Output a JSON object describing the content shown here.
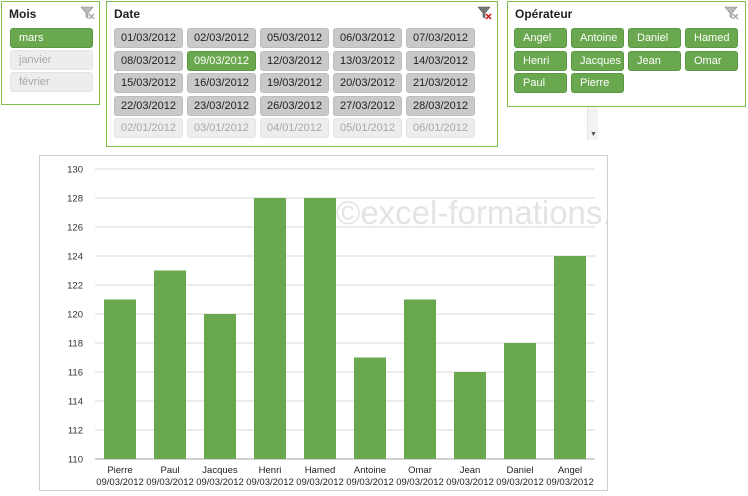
{
  "slicers": {
    "mois": {
      "title": "Mois",
      "items": [
        {
          "label": "mars",
          "state": "selected"
        },
        {
          "label": "janvier",
          "state": "nodata"
        },
        {
          "label": "février",
          "state": "nodata"
        }
      ]
    },
    "date": {
      "title": "Date",
      "items": [
        {
          "label": "01/03/2012",
          "state": "available"
        },
        {
          "label": "02/03/2012",
          "state": "available"
        },
        {
          "label": "05/03/2012",
          "state": "available"
        },
        {
          "label": "06/03/2012",
          "state": "available"
        },
        {
          "label": "07/03/2012",
          "state": "available"
        },
        {
          "label": "08/03/2012",
          "state": "available"
        },
        {
          "label": "09/03/2012",
          "state": "selected"
        },
        {
          "label": "12/03/2012",
          "state": "available"
        },
        {
          "label": "13/03/2012",
          "state": "available"
        },
        {
          "label": "14/03/2012",
          "state": "available"
        },
        {
          "label": "15/03/2012",
          "state": "available"
        },
        {
          "label": "16/03/2012",
          "state": "available"
        },
        {
          "label": "19/03/2012",
          "state": "available"
        },
        {
          "label": "20/03/2012",
          "state": "available"
        },
        {
          "label": "21/03/2012",
          "state": "available"
        },
        {
          "label": "22/03/2012",
          "state": "available"
        },
        {
          "label": "23/03/2012",
          "state": "available"
        },
        {
          "label": "26/03/2012",
          "state": "available"
        },
        {
          "label": "27/03/2012",
          "state": "available"
        },
        {
          "label": "28/03/2012",
          "state": "available"
        },
        {
          "label": "02/01/2012",
          "state": "nodata"
        },
        {
          "label": "03/01/2012",
          "state": "nodata"
        },
        {
          "label": "04/01/2012",
          "state": "nodata"
        },
        {
          "label": "05/01/2012",
          "state": "nodata"
        },
        {
          "label": "06/01/2012",
          "state": "nodata"
        }
      ]
    },
    "operateur": {
      "title": "Opérateur",
      "items": [
        {
          "label": "Angel",
          "state": "selected"
        },
        {
          "label": "Antoine",
          "state": "selected"
        },
        {
          "label": "Daniel",
          "state": "selected"
        },
        {
          "label": "Hamed",
          "state": "selected"
        },
        {
          "label": "Henri",
          "state": "selected"
        },
        {
          "label": "Jacques",
          "state": "selected"
        },
        {
          "label": "Jean",
          "state": "selected"
        },
        {
          "label": "Omar",
          "state": "selected"
        },
        {
          "label": "Paul",
          "state": "selected"
        },
        {
          "label": "Pierre",
          "state": "selected"
        }
      ]
    }
  },
  "colors": {
    "bar": "#6aa84f",
    "selected_tile": "#6aa84f",
    "border_accent": "#7fbf4a"
  },
  "icons": {
    "clear_filter": "funnel-clear-icon"
  },
  "watermark": "©excel-formations.fr",
  "chart_data": {
    "type": "bar",
    "categories": [
      [
        "Pierre",
        "09/03/2012"
      ],
      [
        "Paul",
        "09/03/2012"
      ],
      [
        "Jacques",
        "09/03/2012"
      ],
      [
        "Henri",
        "09/03/2012"
      ],
      [
        "Hamed",
        "09/03/2012"
      ],
      [
        "Antoine",
        "09/03/2012"
      ],
      [
        "Omar",
        "09/03/2012"
      ],
      [
        "Jean",
        "09/03/2012"
      ],
      [
        "Daniel",
        "09/03/2012"
      ],
      [
        "Angel",
        "09/03/2012"
      ]
    ],
    "values": [
      121,
      123,
      120,
      128,
      128,
      117,
      121,
      116,
      118,
      124
    ],
    "ylim": [
      110,
      130
    ],
    "yticks": [
      110,
      112,
      114,
      116,
      118,
      120,
      122,
      124,
      126,
      128,
      130
    ],
    "grid": true,
    "legend": "none"
  }
}
